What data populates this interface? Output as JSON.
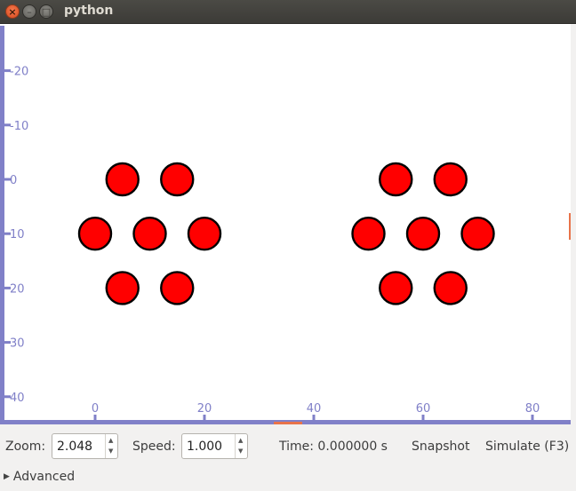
{
  "window": {
    "title": "python",
    "icons": [
      "close-icon",
      "minimize-icon",
      "maximize-icon"
    ]
  },
  "plot": {
    "x_ticks": [
      0,
      20,
      40,
      60,
      80
    ],
    "y_ticks": [
      -20,
      -10,
      0,
      10,
      20,
      30,
      40
    ],
    "particle_color": "#ff0000",
    "particles": [
      {
        "x": 5,
        "y": 0
      },
      {
        "x": 15,
        "y": 0
      },
      {
        "x": 0,
        "y": 10
      },
      {
        "x": 10,
        "y": 10
      },
      {
        "x": 20,
        "y": 10
      },
      {
        "x": 5,
        "y": 20
      },
      {
        "x": 15,
        "y": 20
      },
      {
        "x": 55,
        "y": 0
      },
      {
        "x": 65,
        "y": 0
      },
      {
        "x": 50,
        "y": 10
      },
      {
        "x": 60,
        "y": 10
      },
      {
        "x": 70,
        "y": 10
      },
      {
        "x": 55,
        "y": 20
      },
      {
        "x": 65,
        "y": 20
      }
    ],
    "axis_color": "#8080c8",
    "marker_color": "#e8734a"
  },
  "toolbar": {
    "zoom_label": "Zoom:",
    "zoom_value": "2.048",
    "speed_label": "Speed:",
    "speed_value": "1.000",
    "time_text": "Time: 0.000000 s",
    "snapshot_label": "Snapshot",
    "simulate_label": "Simulate (F3)"
  },
  "advanced": {
    "label": "Advanced",
    "icon": "triangle-right-icon"
  }
}
